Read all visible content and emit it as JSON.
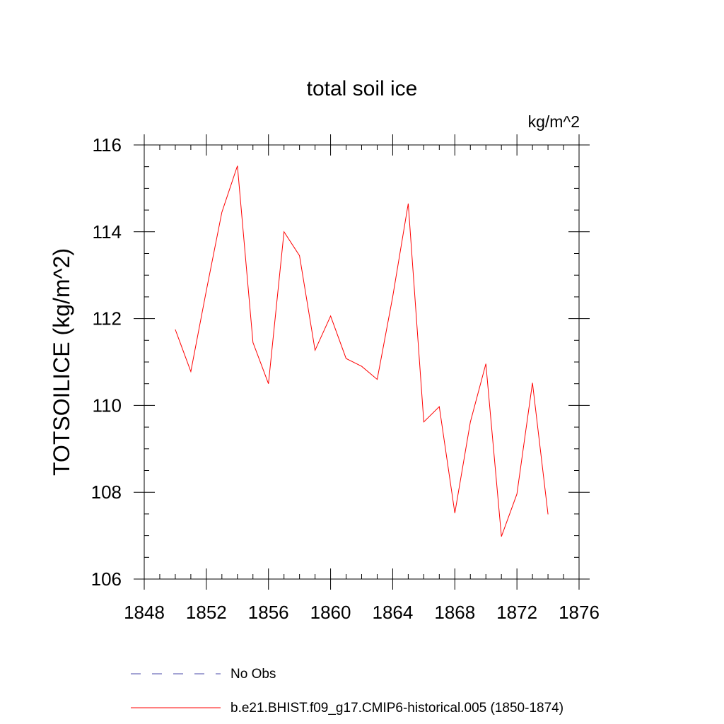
{
  "chart_data": {
    "type": "line",
    "title": "total soil ice",
    "units_label": "kg/m^2",
    "ylabel": "TOTSOILICE  (kg/m^2)",
    "xlabel": "",
    "xlim": [
      1848,
      1876
    ],
    "ylim": [
      106,
      116
    ],
    "x_ticks": [
      1848,
      1852,
      1856,
      1860,
      1864,
      1868,
      1872,
      1876
    ],
    "y_ticks": [
      106,
      108,
      110,
      112,
      114,
      116
    ],
    "grid": false,
    "series": [
      {
        "name": "b.e21.BHIST.f09_g17.CMIP6-historical.005 (1850-1874)",
        "color": "#ff0000",
        "style": "solid",
        "x": [
          1850,
          1851,
          1852,
          1853,
          1854,
          1855,
          1856,
          1857,
          1858,
          1859,
          1860,
          1861,
          1862,
          1863,
          1864,
          1865,
          1866,
          1867,
          1868,
          1869,
          1870,
          1871,
          1872,
          1873,
          1874
        ],
        "y": [
          111.75,
          110.78,
          112.65,
          114.45,
          115.52,
          111.45,
          110.5,
          114.0,
          113.45,
          111.27,
          112.06,
          111.08,
          110.9,
          110.6,
          112.5,
          114.65,
          109.62,
          109.97,
          107.52,
          109.62,
          110.96,
          106.98,
          107.96,
          110.52,
          107.49
        ]
      }
    ],
    "legend": {
      "placement": "bottom",
      "entries": [
        {
          "label": "No Obs",
          "color": "#4a4aa8",
          "style": "dashed"
        },
        {
          "label": "b.e21.BHIST.f09_g17.CMIP6-historical.005 (1850-1874)",
          "color": "#ff0000",
          "style": "solid"
        }
      ]
    }
  }
}
